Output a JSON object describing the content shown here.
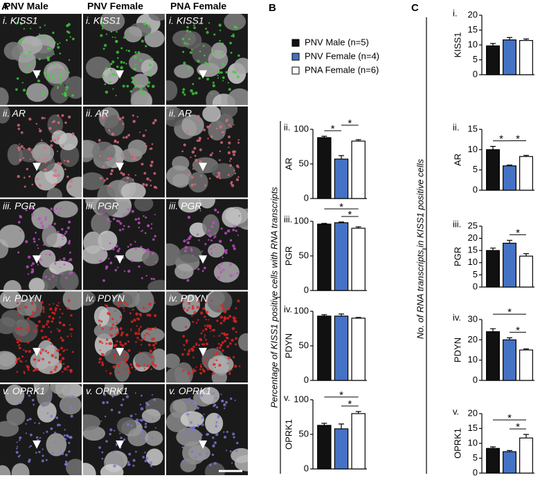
{
  "panel_a": {
    "letter": "A",
    "columns": [
      "PNV Male",
      "PNV Female",
      "PNA Female"
    ],
    "rows": [
      {
        "label": "i. KISS1",
        "color": "#3fcf3f"
      },
      {
        "label": "ii. AR",
        "color": "#e46a7a"
      },
      {
        "label": "iii. PGR",
        "color": "#c24fc6"
      },
      {
        "label": "iv. PDYN",
        "color": "#e3231f"
      },
      {
        "label": "v. OPRK1",
        "color": "#7a78d8"
      }
    ]
  },
  "legend": [
    {
      "name": "PNV Male (n=5)",
      "color": "#111111"
    },
    {
      "name": "PNV Female (n=4)",
      "color": "#4472c4"
    },
    {
      "name": "PNA Female (n=6)",
      "color": "#ffffff"
    }
  ],
  "panel_b": {
    "letter": "B",
    "ylabel": "Percentage of KISS1 positive cells with RNA transcripts"
  },
  "panel_c": {
    "letter": "C",
    "ylabel": "No. of RNA transcripts in KISS1 positive cells"
  },
  "chart_data": [
    {
      "type": "bar",
      "numeral": "ii.",
      "ylabel": "AR",
      "values": [
        88,
        57,
        83
      ],
      "errors": [
        2,
        5,
        2
      ],
      "ylim": [
        0,
        100
      ],
      "yticks": [
        0,
        50,
        100
      ],
      "significance": [
        {
          "label": "*",
          "pair": [
            0,
            1
          ]
        },
        {
          "label": "*",
          "pair": [
            1,
            2
          ]
        }
      ]
    },
    {
      "type": "bar",
      "numeral": "iii.",
      "ylabel": "PGR",
      "values": [
        96,
        98,
        90
      ],
      "errors": [
        1,
        1,
        2
      ],
      "ylim": [
        0,
        100
      ],
      "yticks": [
        0,
        50,
        100
      ],
      "significance": [
        {
          "label": "*",
          "pair": [
            1,
            2
          ]
        },
        {
          "label": "*",
          "pair": [
            0,
            2
          ]
        }
      ]
    },
    {
      "type": "bar",
      "numeral": "iv.",
      "ylabel": "PDYN",
      "values": [
        93,
        93,
        90
      ],
      "errors": [
        2,
        3,
        1
      ],
      "ylim": [
        0,
        100
      ],
      "yticks": [
        0,
        50,
        100
      ],
      "significance": []
    },
    {
      "type": "bar",
      "numeral": "v.",
      "ylabel": "OPRK1",
      "values": [
        63,
        58,
        80
      ],
      "errors": [
        3,
        7,
        3
      ],
      "ylim": [
        0,
        100
      ],
      "yticks": [
        0,
        50,
        100
      ],
      "significance": [
        {
          "label": "*",
          "pair": [
            1,
            2
          ]
        },
        {
          "label": "*",
          "pair": [
            0,
            2
          ]
        }
      ]
    },
    {
      "type": "bar",
      "numeral": "i.",
      "ylabel": "KISS1",
      "values": [
        9.7,
        11.7,
        11.5
      ],
      "errors": [
        0.8,
        0.8,
        0.5
      ],
      "ylim": [
        0,
        20
      ],
      "yticks": [
        0,
        5,
        10,
        15,
        20
      ],
      "significance": []
    },
    {
      "type": "bar",
      "numeral": "ii.",
      "ylabel": "AR",
      "values": [
        10,
        6,
        8.3
      ],
      "errors": [
        0.8,
        0.2,
        0.3
      ],
      "ylim": [
        0,
        15
      ],
      "yticks": [
        0,
        5,
        10,
        15
      ],
      "significance": [
        {
          "label": "*",
          "pair": [
            0,
            1
          ]
        },
        {
          "label": "*",
          "pair": [
            1,
            2
          ]
        }
      ]
    },
    {
      "type": "bar",
      "numeral": "iii.",
      "ylabel": "PGR",
      "values": [
        15,
        18,
        12.7
      ],
      "errors": [
        1,
        1.2,
        1
      ],
      "ylim": [
        0,
        25
      ],
      "yticks": [
        0,
        5,
        10,
        15,
        20,
        25
      ],
      "significance": [
        {
          "label": "*",
          "pair": [
            1,
            2
          ]
        }
      ]
    },
    {
      "type": "bar",
      "numeral": "iv.",
      "ylabel": "PDYN",
      "values": [
        24,
        20,
        15
      ],
      "errors": [
        1.5,
        1,
        0.5
      ],
      "ylim": [
        0,
        30
      ],
      "yticks": [
        0,
        10,
        20,
        30
      ],
      "significance": [
        {
          "label": "*",
          "pair": [
            1,
            2
          ]
        },
        {
          "label": "*",
          "pair": [
            0,
            2
          ]
        }
      ]
    },
    {
      "type": "bar",
      "numeral": "v.",
      "ylabel": "OPRK1",
      "values": [
        8.3,
        7.2,
        11.8
      ],
      "errors": [
        0.5,
        0.4,
        1.2
      ],
      "ylim": [
        0,
        20
      ],
      "yticks": [
        0,
        5,
        10,
        15,
        20
      ],
      "significance": [
        {
          "label": "*",
          "pair": [
            1,
            2
          ]
        },
        {
          "label": "*",
          "pair": [
            0,
            2
          ]
        }
      ]
    }
  ]
}
